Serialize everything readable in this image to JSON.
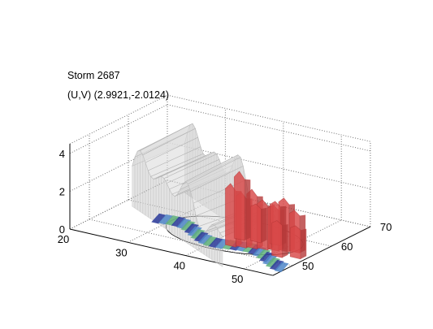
{
  "window": {
    "title_line_1": "Storm 2687",
    "title_line_2": "(U,V) (2.9921,-2.0124)"
  },
  "chart_data": {
    "type": "3d-surface",
    "title": "Storm 2687",
    "subtitle": "(U,V) (2.9921,-2.0124)",
    "xlabel": "",
    "ylabel": "",
    "zlabel": "",
    "x_ticks": [
      20,
      30,
      40,
      50
    ],
    "y_ticks": [
      50,
      60,
      70
    ],
    "z_ticks": [
      0,
      2,
      4
    ],
    "xlim": [
      20,
      55
    ],
    "ylim": [
      45,
      70
    ],
    "zlim": [
      0,
      4.5
    ],
    "grid": true,
    "colors": {
      "outer_isosurface": "#c8c8c8",
      "inner_isosurface": "#d84848",
      "base_contour_low": "#2a3a9a",
      "base_contour_mid": "#4f86c8",
      "base_contour_high": "#5fb07a",
      "grid": "#707070",
      "axis": "#000000"
    },
    "series": []
  }
}
